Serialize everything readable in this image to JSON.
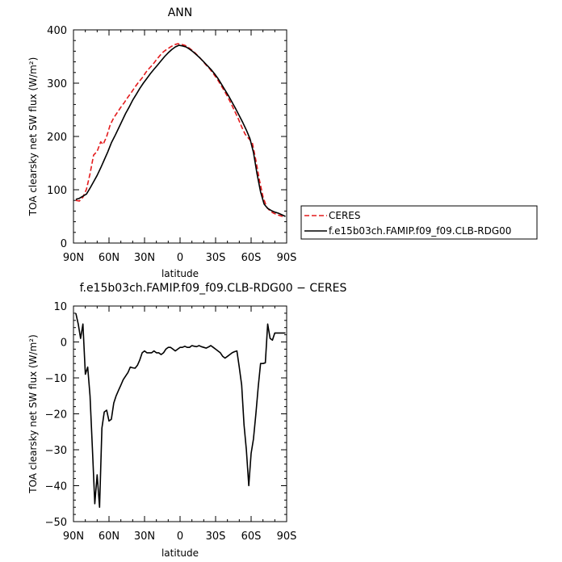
{
  "chart_data": [
    {
      "type": "line",
      "title": "ANN",
      "xlabel": "latitude",
      "ylabel": "TOA clearsky net SW flux (W/m²)",
      "xlim": [
        90,
        -90
      ],
      "ylim": [
        0,
        400
      ],
      "x_tick_values": [
        90,
        60,
        30,
        0,
        -30,
        -60,
        -90
      ],
      "x_tick_labels": [
        "90N",
        "60N",
        "30N",
        "0",
        "30S",
        "60S",
        "90S"
      ],
      "y_tick_values": [
        0,
        100,
        200,
        300,
        400
      ],
      "y_tick_labels": [
        "0",
        "100",
        "200",
        "300",
        "400"
      ],
      "legend_position": "right",
      "series": [
        {
          "name": "CERES",
          "color": "#e41a1c",
          "dash": "dashed",
          "x": [
            88,
            85,
            82,
            79,
            76,
            73,
            70,
            67,
            65,
            62,
            59,
            56,
            53,
            50,
            47,
            44,
            41,
            38,
            35,
            32,
            29,
            26,
            23,
            20,
            17,
            14,
            11,
            8,
            5,
            2,
            -1,
            -4,
            -7,
            -10,
            -13,
            -16,
            -19,
            -22,
            -25,
            -28,
            -31,
            -34,
            -37,
            -40,
            -43,
            -46,
            -49,
            -52,
            -55,
            -58,
            -61,
            -64,
            -67,
            -70,
            -73,
            -76,
            -79,
            -82,
            -85,
            -88
          ],
          "y": [
            80,
            79,
            86,
            101,
            130,
            165,
            172,
            190,
            185,
            200,
            222,
            235,
            245,
            255,
            264,
            274,
            283,
            293,
            302,
            310,
            320,
            328,
            335,
            344,
            352,
            359,
            364,
            368,
            372,
            374,
            373,
            371,
            367,
            362,
            356,
            349,
            342,
            334,
            327,
            318,
            309,
            298,
            287,
            275,
            262,
            248,
            234,
            218,
            204,
            196,
            188,
            155,
            118,
            87,
            68,
            60,
            56,
            53,
            51,
            49
          ]
        },
        {
          "name": "f.e15b03ch.FAMIP.f09_f09.CLB-RDG00",
          "color": "#000000",
          "dash": "solid",
          "x": [
            88,
            85,
            82,
            79,
            76,
            73,
            70,
            67,
            64,
            61,
            58,
            55,
            52,
            49,
            46,
            43,
            40,
            37,
            34,
            31,
            28,
            25,
            22,
            19,
            16,
            13,
            10,
            7,
            4,
            1,
            -2,
            -5,
            -8,
            -11,
            -14,
            -17,
            -20,
            -23,
            -26,
            -29,
            -32,
            -35,
            -38,
            -41,
            -44,
            -47,
            -50,
            -53,
            -56,
            -59,
            -62,
            -65,
            -68,
            -71,
            -74,
            -77,
            -80,
            -83,
            -86,
            -89
          ],
          "y": [
            82,
            84,
            88,
            92,
            103,
            115,
            127,
            141,
            156,
            171,
            188,
            201,
            215,
            229,
            243,
            255,
            268,
            279,
            290,
            300,
            309,
            318,
            326,
            334,
            342,
            350,
            357,
            363,
            368,
            371,
            370,
            368,
            364,
            359,
            353,
            347,
            340,
            333,
            326,
            318,
            309,
            298,
            287,
            276,
            264,
            252,
            239,
            226,
            212,
            196,
            170,
            130,
            96,
            73,
            65,
            61,
            58,
            56,
            53,
            50
          ]
        }
      ]
    },
    {
      "type": "line",
      "title": "f.e15b03ch.FAMIP.f09_f09.CLB-RDG00 − CERES",
      "xlabel": "latitude",
      "ylabel": "TOA clearsky net SW flux (W/m²)",
      "xlim": [
        90,
        -90
      ],
      "ylim": [
        -50,
        10
      ],
      "x_tick_values": [
        90,
        60,
        30,
        0,
        -30,
        -60,
        -90
      ],
      "x_tick_labels": [
        "90N",
        "60N",
        "30N",
        "0",
        "30S",
        "60S",
        "90S"
      ],
      "y_tick_values": [
        -50,
        -40,
        -30,
        -20,
        -10,
        0,
        10
      ],
      "y_tick_labels": [
        "−50",
        "−40",
        "−30",
        "−20",
        "−10",
        "0",
        "10"
      ],
      "series": [
        {
          "color": "#000000",
          "dash": "solid",
          "x": [
            88,
            86,
            84,
            82,
            80,
            78,
            76,
            74,
            72,
            70,
            68,
            66,
            64,
            62,
            60,
            58,
            56,
            54,
            52,
            50,
            48,
            46,
            44,
            42,
            40,
            38,
            36,
            34,
            32,
            30,
            28,
            26,
            24,
            22,
            20,
            18,
            16,
            14,
            12,
            10,
            8,
            6,
            4,
            2,
            0,
            -2,
            -4,
            -6,
            -8,
            -10,
            -12,
            -14,
            -16,
            -18,
            -20,
            -22,
            -24,
            -26,
            -28,
            -30,
            -32,
            -34,
            -36,
            -38,
            -40,
            -42,
            -44,
            -46,
            -48,
            -50,
            -52,
            -54,
            -56,
            -58,
            -60,
            -62,
            -64,
            -66,
            -68,
            -70,
            -72,
            -74,
            -76,
            -78,
            -80,
            -82,
            -84,
            -86,
            -88,
            -89
          ],
          "y": [
            8,
            5,
            1,
            5,
            -9,
            -7,
            -15,
            -30,
            -45,
            -37,
            -46,
            -24,
            -19.5,
            -19,
            -22,
            -21.5,
            -17,
            -15,
            -13.5,
            -12,
            -10.5,
            -9.5,
            -8.5,
            -7,
            -7.2,
            -7.3,
            -6.5,
            -5,
            -3,
            -2.5,
            -3,
            -3,
            -3,
            -2.5,
            -3,
            -3,
            -3.5,
            -3,
            -2,
            -1.5,
            -1.5,
            -2,
            -2.5,
            -2,
            -1.5,
            -1.5,
            -1.2,
            -1.5,
            -1.5,
            -1,
            -1.2,
            -1.3,
            -1,
            -1.3,
            -1.5,
            -1.7,
            -1.4,
            -1,
            -1.5,
            -2,
            -2.5,
            -3,
            -4,
            -4.5,
            -4,
            -3.5,
            -3,
            -2.7,
            -2.5,
            -7,
            -12,
            -23,
            -30,
            -40,
            -31,
            -27,
            -20,
            -12.5,
            -6,
            -6,
            -5.8,
            5,
            1,
            0.5,
            2.5,
            2.5,
            2.5,
            2.5,
            2.5,
            2.5
          ]
        }
      ]
    }
  ]
}
